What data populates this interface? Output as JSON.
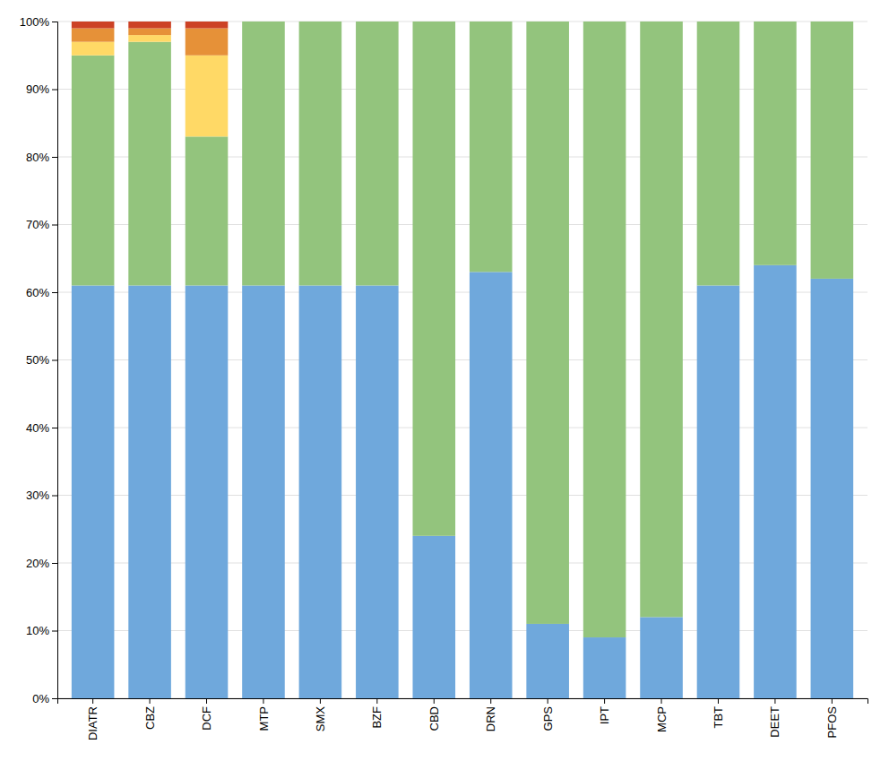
{
  "chart_data": {
    "type": "bar",
    "stacked": true,
    "grid": true,
    "categories": [
      "DIATR",
      "CBZ",
      "DCF",
      "MTP",
      "SMX",
      "BZF",
      "CBD",
      "DRN",
      "GPS",
      "IPT",
      "MCP",
      "TBT",
      "DEET",
      "PFOS"
    ],
    "series": [
      {
        "color": "#6fa8dc",
        "values": [
          61,
          61,
          61,
          61,
          61,
          61,
          24,
          63,
          11,
          9,
          12,
          61,
          64,
          62
        ]
      },
      {
        "color": "#93c47d",
        "values": [
          34,
          36,
          22,
          39,
          39,
          39,
          76,
          37,
          89,
          91,
          88,
          39,
          36,
          38
        ]
      },
      {
        "color": "#ffd966",
        "values": [
          2,
          1,
          12,
          0,
          0,
          0,
          0,
          0,
          0,
          0,
          0,
          0,
          0,
          0
        ]
      },
      {
        "color": "#e69138",
        "values": [
          2,
          1,
          4,
          0,
          0,
          0,
          0,
          0,
          0,
          0,
          0,
          0,
          0,
          0
        ]
      },
      {
        "color": "#cc4125",
        "values": [
          1,
          1,
          1,
          0,
          0,
          0,
          0,
          0,
          0,
          0,
          0,
          0,
          0,
          0
        ]
      }
    ],
    "ylim": [
      0,
      100
    ],
    "yticks": [
      {
        "value": 0,
        "label": "0%"
      },
      {
        "value": 10,
        "label": "10%"
      },
      {
        "value": 20,
        "label": "20%"
      },
      {
        "value": 30,
        "label": "30%"
      },
      {
        "value": 40,
        "label": "40%"
      },
      {
        "value": 50,
        "label": "50%"
      },
      {
        "value": 60,
        "label": "60%"
      },
      {
        "value": 70,
        "label": "70%"
      },
      {
        "value": 80,
        "label": "80%"
      },
      {
        "value": 90,
        "label": "90%"
      },
      {
        "value": 100,
        "label": "100%"
      }
    ]
  }
}
